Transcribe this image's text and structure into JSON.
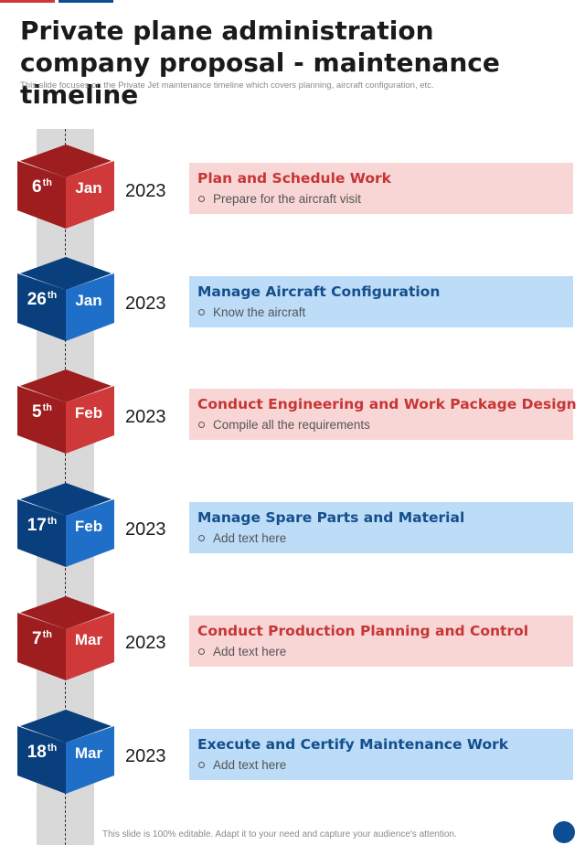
{
  "header": {
    "title": "Private plane administration company proposal - maintenance timeline",
    "subtitle": "This slide focuses on the Private Jet maintenance timeline which covers planning, aircraft configuration, etc."
  },
  "colors": {
    "red": "#d0393a",
    "red_dark": "#9e1e20",
    "blue": "#1f6fc8",
    "blue_dark": "#0a3f7d"
  },
  "timeline": [
    {
      "day": "6",
      "suffix": "th",
      "month": "Jan",
      "year": "2023",
      "title": "Plan and Schedule Work",
      "item": "Prepare for the aircraft visit",
      "theme": "red"
    },
    {
      "day": "26",
      "suffix": "th",
      "month": "Jan",
      "year": "2023",
      "title": "Manage Aircraft Configuration",
      "item": "Know the aircraft",
      "theme": "blue"
    },
    {
      "day": "5",
      "suffix": "th",
      "month": "Feb",
      "year": "2023",
      "title": "Conduct Engineering and Work Package Design",
      "item": "Compile all the requirements",
      "theme": "red"
    },
    {
      "day": "17",
      "suffix": "th",
      "month": "Feb",
      "year": "2023",
      "title": "Manage Spare Parts and Material",
      "item": "Add text here",
      "theme": "blue"
    },
    {
      "day": "7",
      "suffix": "th",
      "month": "Mar",
      "year": "2023",
      "title": "Conduct Production Planning and Control",
      "item": "Add text here",
      "theme": "red"
    },
    {
      "day": "18",
      "suffix": "th",
      "month": "Mar",
      "year": "2023",
      "title": "Execute and Certify Maintenance Work",
      "item": "Add text here",
      "theme": "blue"
    }
  ],
  "footer": {
    "text": "This slide is 100% editable. Adapt it to your need and capture your audience's attention."
  }
}
